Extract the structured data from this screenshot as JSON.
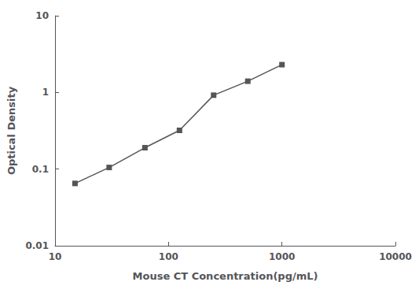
{
  "chart_data": {
    "type": "line",
    "xlabel": "Mouse CT Concentration(pg/mL)",
    "ylabel": "Optical Density",
    "x": [
      15,
      30,
      62,
      125,
      250,
      500,
      1000
    ],
    "values": [
      0.065,
      0.105,
      0.19,
      0.32,
      0.92,
      1.4,
      2.3
    ],
    "color": "#555555",
    "marker": "square",
    "log": true,
    "grid": false,
    "xlim": [
      10,
      10000
    ],
    "ylim": [
      0.01,
      10
    ],
    "xticks": [
      10,
      100,
      1000,
      10000
    ],
    "yticks": [
      0.01,
      0.1,
      1,
      10
    ]
  }
}
